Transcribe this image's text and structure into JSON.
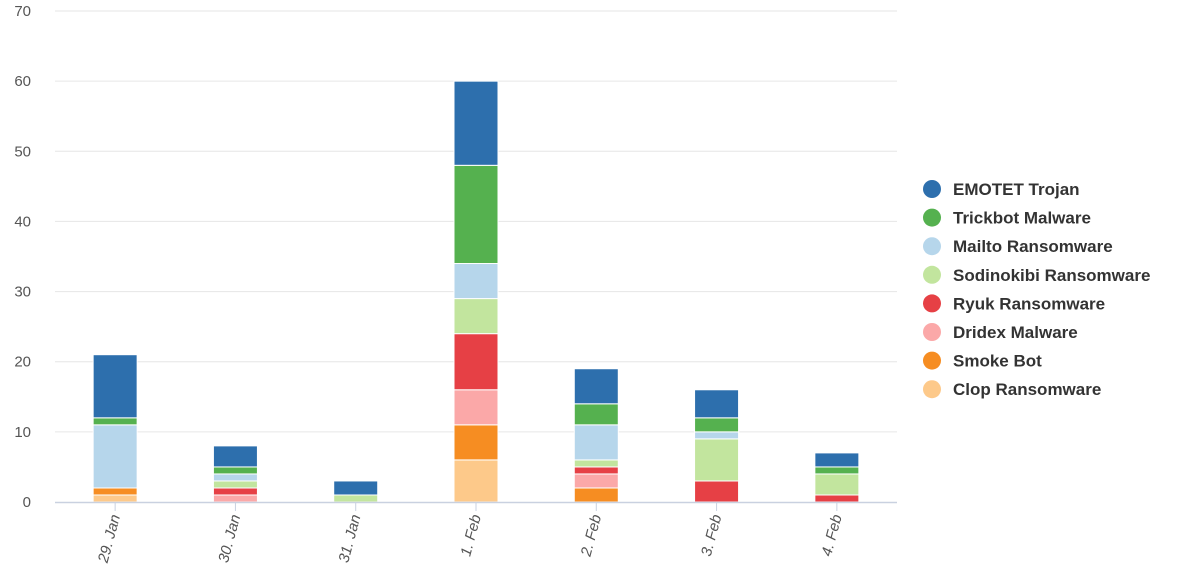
{
  "chart_data": {
    "type": "bar",
    "stacked": true,
    "categories": [
      "29. Jan",
      "30. Jan",
      "31. Jan",
      "1. Feb",
      "2. Feb",
      "3. Feb",
      "4. Feb"
    ],
    "ylim": [
      0,
      70
    ],
    "yticks": [
      0,
      10,
      20,
      30,
      40,
      50,
      60,
      70
    ],
    "grid": true,
    "legend_position": "right",
    "title": "",
    "xlabel": "",
    "ylabel": "",
    "series": [
      {
        "name": "Clop Ransomware",
        "color": "#fdc98a",
        "values": [
          1,
          0,
          0,
          6,
          0,
          0,
          0
        ]
      },
      {
        "name": "Smoke Bot",
        "color": "#f68d22",
        "values": [
          1,
          0,
          0,
          5,
          2,
          0,
          0
        ]
      },
      {
        "name": "Dridex Malware",
        "color": "#fba8a8",
        "values": [
          0,
          1,
          0,
          5,
          2,
          0,
          0
        ]
      },
      {
        "name": "Ryuk Ransomware",
        "color": "#e64045",
        "values": [
          0,
          1,
          0,
          8,
          1,
          3,
          1
        ]
      },
      {
        "name": "Sodinokibi Ransomware",
        "color": "#c2e59e",
        "values": [
          0,
          1,
          1,
          5,
          1,
          6,
          3
        ]
      },
      {
        "name": "Mailto Ransomware",
        "color": "#b6d6eb",
        "values": [
          9,
          1,
          0,
          5,
          5,
          1,
          0
        ]
      },
      {
        "name": "Trickbot Malware",
        "color": "#55b14f",
        "values": [
          1,
          1,
          0,
          14,
          3,
          2,
          1
        ]
      },
      {
        "name": "EMOTET Trojan",
        "color": "#2d6fad",
        "values": [
          9,
          3,
          2,
          12,
          5,
          4,
          2
        ]
      }
    ]
  }
}
